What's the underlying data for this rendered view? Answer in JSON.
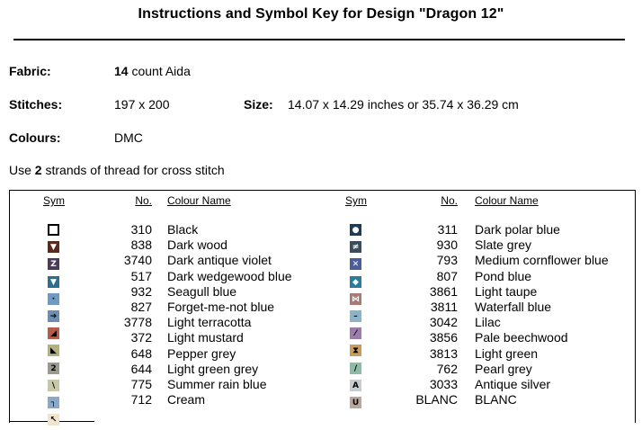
{
  "title": "Instructions and Symbol Key for Design \"Dragon 12\"",
  "fabric": {
    "label": "Fabric:",
    "count": "14",
    "rest": " count Aida"
  },
  "stitches": {
    "label": "Stitches:",
    "value": "197 x 200"
  },
  "size": {
    "label": "Size:",
    "value": "14.07 x 14.29 inches or 35.74 x 36.29 cm"
  },
  "colours": {
    "label": "Colours:",
    "value": "DMC"
  },
  "strands": {
    "pre": "Use ",
    "count": "2",
    "post": " strands of thread for cross stitch"
  },
  "headers": {
    "sym": "Sym",
    "no": "No.",
    "name": "Colour Name"
  },
  "left_rows": [
    {
      "glyph": "",
      "icon": "hollow-square-icon",
      "bg": "#ffffff",
      "fg": "#000000",
      "border": "#000000",
      "no": "310",
      "name": "Black"
    },
    {
      "glyph": "▼",
      "icon": "triangle-down-icon",
      "bg": "#5a2a1c",
      "fg": "#ffffff",
      "border": "#5a2a1c",
      "no": "838",
      "name": "Dark wood"
    },
    {
      "glyph": "Z",
      "icon": "letter-z-icon",
      "bg": "#4a3b5c",
      "fg": "#ffffff",
      "border": "#4a3b5c",
      "no": "3740",
      "name": "Dark antique violet"
    },
    {
      "glyph": "▼",
      "icon": "triangle-down-icon",
      "bg": "#2c6e8f",
      "fg": "#ffffff",
      "border": "#2c6e8f",
      "no": "517",
      "name": "Dark wedgewood blue"
    },
    {
      "glyph": "·",
      "icon": "dot-icon",
      "bg": "#6f9ac2",
      "fg": "#000000",
      "border": "#6f9ac2",
      "no": "932",
      "name": "Seagull blue"
    },
    {
      "glyph": "➔",
      "icon": "arrow-right-icon",
      "bg": "#6d8eb4",
      "fg": "#000000",
      "border": "#6d8eb4",
      "no": "827",
      "name": "Forget-me-not blue"
    },
    {
      "glyph": "◢",
      "icon": "corner-triangle-icon",
      "bg": "#b85b4a",
      "fg": "#000000",
      "border": "#b85b4a",
      "no": "3778",
      "name": "Light terracotta"
    },
    {
      "glyph": "◣",
      "icon": "corner-triangle-icon",
      "bg": "#b6b07a",
      "fg": "#000000",
      "border": "#b6b07a",
      "no": "372",
      "name": "Light mustard"
    },
    {
      "glyph": "2",
      "icon": "numeral-two-icon",
      "bg": "#9a9a8e",
      "fg": "#000000",
      "border": "#9a9a8e",
      "no": "648",
      "name": "Pepper grey"
    },
    {
      "glyph": "\\",
      "icon": "backslash-icon",
      "bg": "#c8c8a8",
      "fg": "#000000",
      "border": "#c8c8a8",
      "no": "644",
      "name": "Light green grey"
    },
    {
      "glyph": "┐",
      "icon": "corner-bracket-icon",
      "bg": "#8aa8c8",
      "fg": "#000000",
      "border": "#8aa8c8",
      "no": "775",
      "name": "Summer rain blue"
    },
    {
      "glyph": "↖",
      "icon": "arrow-up-left-icon",
      "bg": "#f0e4cc",
      "fg": "#000000",
      "border": "#f0e4cc",
      "no": "712",
      "name": "Cream"
    }
  ],
  "right_rows": [
    {
      "glyph": "●",
      "icon": "circle-icon",
      "bg": "#1c3c5c",
      "fg": "#ffffff",
      "border": "#1c3c5c",
      "no": "311",
      "name": "Dark polar blue"
    },
    {
      "glyph": "≠",
      "icon": "not-equal-icon",
      "bg": "#3c4c5c",
      "fg": "#ffffff",
      "border": "#3c4c5c",
      "no": "930",
      "name": "Slate grey"
    },
    {
      "glyph": "✕",
      "icon": "cross-icon",
      "bg": "#4c5c9c",
      "fg": "#ffffff",
      "border": "#4c5c9c",
      "no": "793",
      "name": "Medium cornflower blue"
    },
    {
      "glyph": "◆",
      "icon": "diamond-icon",
      "bg": "#2c7c9c",
      "fg": "#ffffff",
      "border": "#2c7c9c",
      "no": "807",
      "name": "Pond blue"
    },
    {
      "glyph": "⋈",
      "icon": "bowtie-icon",
      "bg": "#a87c74",
      "fg": "#ffffff",
      "border": "#a87c74",
      "no": "3861",
      "name": "Light taupe"
    },
    {
      "glyph": "–",
      "icon": "dash-icon",
      "bg": "#8cb4c8",
      "fg": "#000000",
      "border": "#8cb4c8",
      "no": "3811",
      "name": "Waterfall blue"
    },
    {
      "glyph": "⁄",
      "icon": "slash-icon",
      "bg": "#9c7cac",
      "fg": "#000000",
      "border": "#9c7cac",
      "no": "3042",
      "name": "Lilac"
    },
    {
      "glyph": "⧗",
      "icon": "hourglass-icon",
      "bg": "#c89c5c",
      "fg": "#000000",
      "border": "#c89c5c",
      "no": "3856",
      "name": "Pale beechwood"
    },
    {
      "glyph": "/",
      "icon": "slash-icon",
      "bg": "#8cbca8",
      "fg": "#000000",
      "border": "#8cbca8",
      "no": "3813",
      "name": "Light green"
    },
    {
      "glyph": "A",
      "icon": "letter-a-icon",
      "bg": "#c8ccd0",
      "fg": "#000000",
      "border": "#c8ccd0",
      "no": "762",
      "name": "Pearl grey"
    },
    {
      "glyph": "U",
      "icon": "letter-u-icon",
      "bg": "#b8a89c",
      "fg": "#000000",
      "border": "#b8a89c",
      "no": "3033",
      "name": "Antique silver"
    },
    {
      "glyph": "",
      "icon": "blank-swatch-icon",
      "bg": "#ffffff",
      "fg": "#000000",
      "border": "#ffffff",
      "no": "BLANC",
      "name": "BLANC"
    }
  ]
}
